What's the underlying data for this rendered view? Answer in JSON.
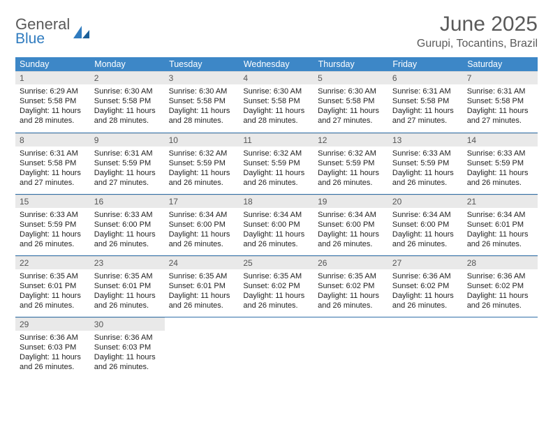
{
  "brand": {
    "line1": "General",
    "line2": "Blue"
  },
  "title": "June 2025",
  "location": "Gurupi, Tocantins, Brazil",
  "colors": {
    "header_bg": "#3d87c7",
    "header_text": "#ffffff",
    "daynum_bg": "#e9e9e9",
    "row_border": "#2f6fa8",
    "text": "#222222",
    "title_text": "#595959"
  },
  "weekdays": [
    "Sunday",
    "Monday",
    "Tuesday",
    "Wednesday",
    "Thursday",
    "Friday",
    "Saturday"
  ],
  "weeks": [
    [
      {
        "n": "1",
        "sr": "6:29 AM",
        "ss": "5:58 PM",
        "dl": "11 hours and 28 minutes."
      },
      {
        "n": "2",
        "sr": "6:30 AM",
        "ss": "5:58 PM",
        "dl": "11 hours and 28 minutes."
      },
      {
        "n": "3",
        "sr": "6:30 AM",
        "ss": "5:58 PM",
        "dl": "11 hours and 28 minutes."
      },
      {
        "n": "4",
        "sr": "6:30 AM",
        "ss": "5:58 PM",
        "dl": "11 hours and 28 minutes."
      },
      {
        "n": "5",
        "sr": "6:30 AM",
        "ss": "5:58 PM",
        "dl": "11 hours and 27 minutes."
      },
      {
        "n": "6",
        "sr": "6:31 AM",
        "ss": "5:58 PM",
        "dl": "11 hours and 27 minutes."
      },
      {
        "n": "7",
        "sr": "6:31 AM",
        "ss": "5:58 PM",
        "dl": "11 hours and 27 minutes."
      }
    ],
    [
      {
        "n": "8",
        "sr": "6:31 AM",
        "ss": "5:58 PM",
        "dl": "11 hours and 27 minutes."
      },
      {
        "n": "9",
        "sr": "6:31 AM",
        "ss": "5:59 PM",
        "dl": "11 hours and 27 minutes."
      },
      {
        "n": "10",
        "sr": "6:32 AM",
        "ss": "5:59 PM",
        "dl": "11 hours and 26 minutes."
      },
      {
        "n": "11",
        "sr": "6:32 AM",
        "ss": "5:59 PM",
        "dl": "11 hours and 26 minutes."
      },
      {
        "n": "12",
        "sr": "6:32 AM",
        "ss": "5:59 PM",
        "dl": "11 hours and 26 minutes."
      },
      {
        "n": "13",
        "sr": "6:33 AM",
        "ss": "5:59 PM",
        "dl": "11 hours and 26 minutes."
      },
      {
        "n": "14",
        "sr": "6:33 AM",
        "ss": "5:59 PM",
        "dl": "11 hours and 26 minutes."
      }
    ],
    [
      {
        "n": "15",
        "sr": "6:33 AM",
        "ss": "5:59 PM",
        "dl": "11 hours and 26 minutes."
      },
      {
        "n": "16",
        "sr": "6:33 AM",
        "ss": "6:00 PM",
        "dl": "11 hours and 26 minutes."
      },
      {
        "n": "17",
        "sr": "6:34 AM",
        "ss": "6:00 PM",
        "dl": "11 hours and 26 minutes."
      },
      {
        "n": "18",
        "sr": "6:34 AM",
        "ss": "6:00 PM",
        "dl": "11 hours and 26 minutes."
      },
      {
        "n": "19",
        "sr": "6:34 AM",
        "ss": "6:00 PM",
        "dl": "11 hours and 26 minutes."
      },
      {
        "n": "20",
        "sr": "6:34 AM",
        "ss": "6:00 PM",
        "dl": "11 hours and 26 minutes."
      },
      {
        "n": "21",
        "sr": "6:34 AM",
        "ss": "6:01 PM",
        "dl": "11 hours and 26 minutes."
      }
    ],
    [
      {
        "n": "22",
        "sr": "6:35 AM",
        "ss": "6:01 PM",
        "dl": "11 hours and 26 minutes."
      },
      {
        "n": "23",
        "sr": "6:35 AM",
        "ss": "6:01 PM",
        "dl": "11 hours and 26 minutes."
      },
      {
        "n": "24",
        "sr": "6:35 AM",
        "ss": "6:01 PM",
        "dl": "11 hours and 26 minutes."
      },
      {
        "n": "25",
        "sr": "6:35 AM",
        "ss": "6:02 PM",
        "dl": "11 hours and 26 minutes."
      },
      {
        "n": "26",
        "sr": "6:35 AM",
        "ss": "6:02 PM",
        "dl": "11 hours and 26 minutes."
      },
      {
        "n": "27",
        "sr": "6:36 AM",
        "ss": "6:02 PM",
        "dl": "11 hours and 26 minutes."
      },
      {
        "n": "28",
        "sr": "6:36 AM",
        "ss": "6:02 PM",
        "dl": "11 hours and 26 minutes."
      }
    ],
    [
      {
        "n": "29",
        "sr": "6:36 AM",
        "ss": "6:03 PM",
        "dl": "11 hours and 26 minutes."
      },
      {
        "n": "30",
        "sr": "6:36 AM",
        "ss": "6:03 PM",
        "dl": "11 hours and 26 minutes."
      },
      null,
      null,
      null,
      null,
      null
    ]
  ],
  "labels": {
    "sunrise": "Sunrise:",
    "sunset": "Sunset:",
    "daylight": "Daylight:"
  }
}
